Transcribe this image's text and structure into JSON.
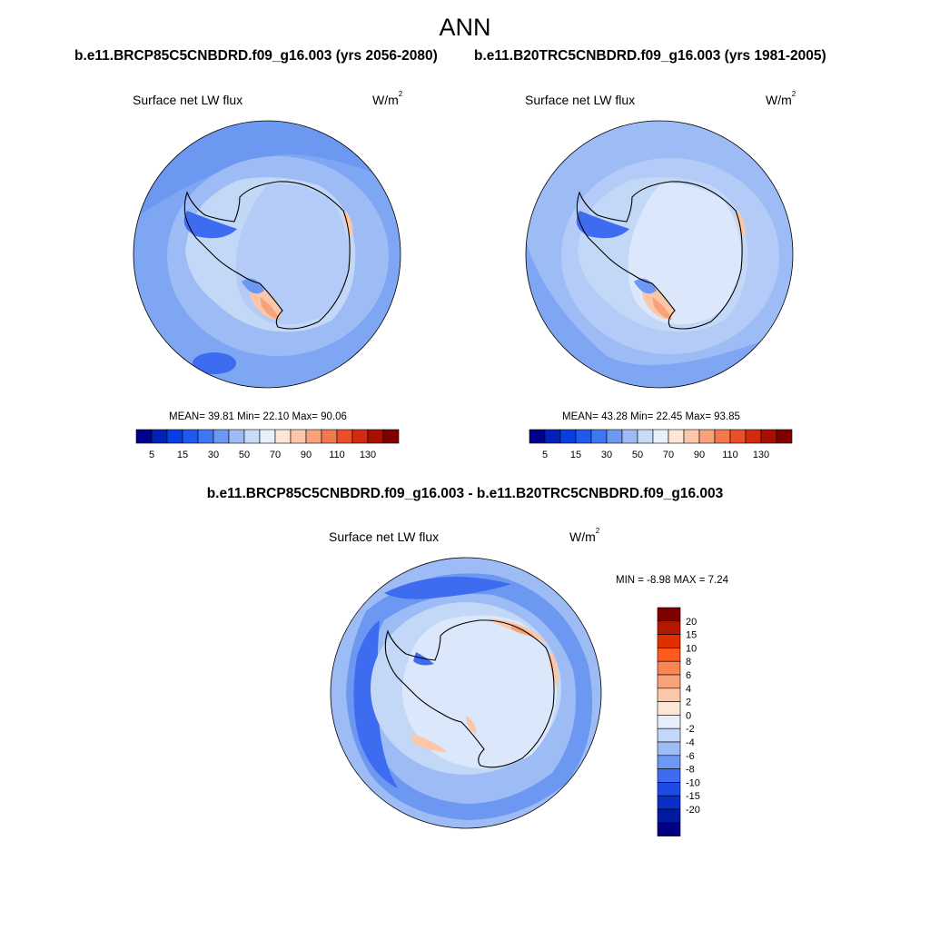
{
  "title": "ANN",
  "case1": "b.e11.BRCP85C5CNBDRD.f09_g16.003 (yrs 2056-2080)",
  "case2": "b.e11.B20TRC5CNBDRD.f09_g16.003 (yrs 1981-2005)",
  "diff_title": "b.e11.BRCP85C5CNBDRD.f09_g16.003 - b.e11.B20TRC5CNBDRD.f09_g16.003",
  "variable": "Surface net LW flux",
  "units_base": "W/m",
  "units_exp": "2",
  "panel1": {
    "stats": "MEAN=  39.81  Min=  22.10  Max=  90.06"
  },
  "panel2": {
    "stats": "MEAN=  43.28  Min=  22.45  Max=  93.85"
  },
  "panel3": {
    "stats": "MIN =  -8.98 MAX =   7.24"
  },
  "colorbar_abs": {
    "labels": [
      "5",
      "15",
      "30",
      "50",
      "70",
      "90",
      "110",
      "130"
    ],
    "colors": [
      "#00008c",
      "#0022b8",
      "#0a3ee0",
      "#1e5af0",
      "#3d78f2",
      "#6d98f2",
      "#9dbcf5",
      "#c8dbf8",
      "#e8f0fb",
      "#fde6d5",
      "#fbc7a8",
      "#f7a27a",
      "#f2784e",
      "#ec4e2a",
      "#d32a10",
      "#a80f00",
      "#800000"
    ]
  },
  "colorbar_diff": {
    "labels": [
      "20",
      "15",
      "10",
      "8",
      "6",
      "4",
      "2",
      "0",
      "-2",
      "-4",
      "-6",
      "-8",
      "-10",
      "-15",
      "-20"
    ],
    "colors": [
      "#800000",
      "#b41800",
      "#e03000",
      "#ff5a1e",
      "#fa8452",
      "#f7a27a",
      "#fbc7a8",
      "#fde6d5",
      "#e6eefb",
      "#c3d7f7",
      "#9dbcf5",
      "#6d98f2",
      "#3d6cf0",
      "#1e4be6",
      "#0a2ec8",
      "#001aa0",
      "#000080"
    ]
  }
}
